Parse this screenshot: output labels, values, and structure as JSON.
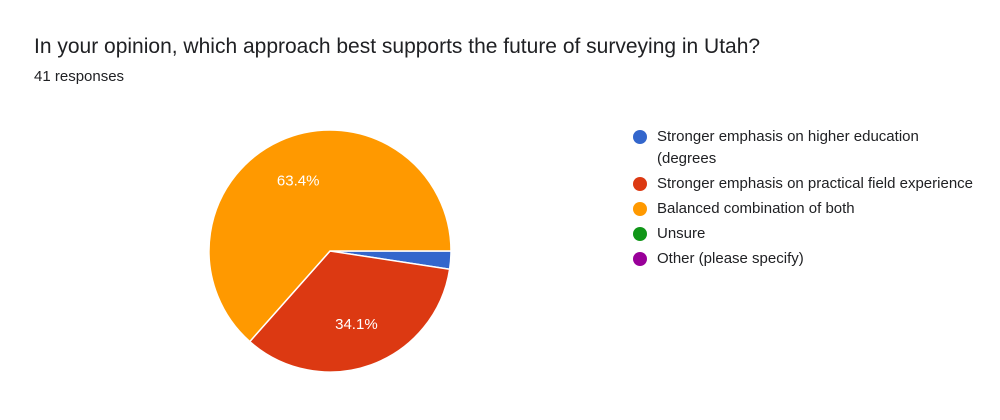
{
  "question": {
    "title": "In your opinion, which approach best supports the future of surveying in Utah?",
    "responses": "41 responses"
  },
  "chart_data": {
    "type": "pie",
    "categories": [
      "Stronger emphasis on higher education (degrees",
      "Stronger emphasis on practical field experience",
      "Balanced combination of both",
      "Unsure",
      "Other (please specify)"
    ],
    "values": [
      2.4,
      34.1,
      63.4,
      0,
      0
    ],
    "slice_labels": [
      "",
      "34.1%",
      "63.4%",
      "",
      ""
    ],
    "colors": [
      "#3366cc",
      "#dc3912",
      "#ff9900",
      "#109618",
      "#990099"
    ],
    "legend_position": "right"
  },
  "legend": {
    "items": [
      {
        "label": "Stronger emphasis on higher education (degrees",
        "color": "#3366cc"
      },
      {
        "label": "Stronger emphasis on practical field experience",
        "color": "#dc3912"
      },
      {
        "label": "Balanced combination of both",
        "color": "#ff9900"
      },
      {
        "label": "Unsure",
        "color": "#109618"
      },
      {
        "label": "Other (please specify)",
        "color": "#990099"
      }
    ]
  }
}
